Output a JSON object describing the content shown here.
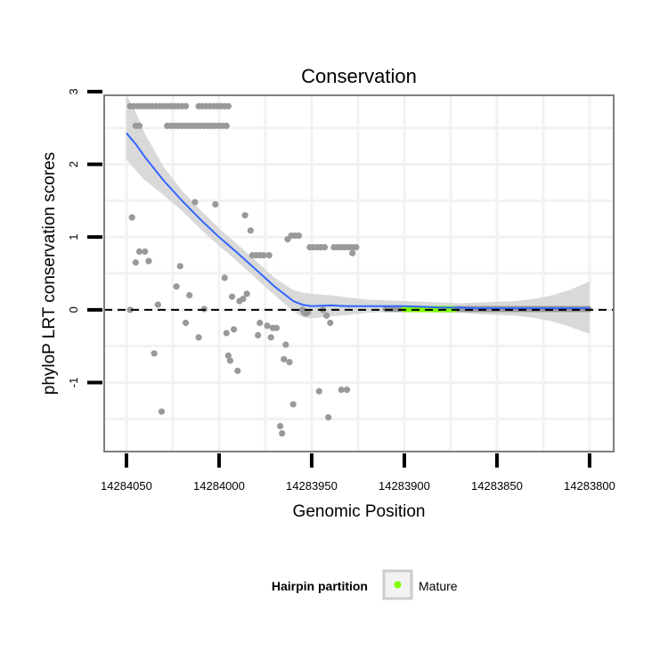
{
  "chart_data": {
    "type": "scatter",
    "title": "Conservation",
    "xlabel": "Genomic Position",
    "ylabel": "phyloP LRT conservation scores",
    "xlim": [
      14284062,
      14283787
    ],
    "x_reversed": true,
    "ylim": [
      -1.95,
      2.95
    ],
    "x_ticks": [
      14284050,
      14284000,
      14283950,
      14283900,
      14283850,
      14283800
    ],
    "x_tick_labels": [
      "14284050",
      "14284000",
      "14283950",
      "14283900",
      "14283850",
      "14283800"
    ],
    "y_ticks": [
      -1,
      0,
      1,
      2,
      3
    ],
    "y_tick_labels": [
      "-1",
      "0",
      "1",
      "2",
      "3"
    ],
    "reference_line": {
      "y": 0,
      "style": "dashed"
    },
    "colors": {
      "points": "#999999",
      "smooth_line": "#3366FF",
      "confidence_band": "#d9d9d9",
      "mature": "#7fff00",
      "panel_border": "#7f7f7f",
      "grid": "#f2f2f2"
    },
    "points": [
      [
        14284048,
        2.8
      ],
      [
        14284046,
        2.8
      ],
      [
        14284044,
        2.8
      ],
      [
        14284042,
        2.8
      ],
      [
        14284040,
        2.8
      ],
      [
        14284038,
        2.8
      ],
      [
        14284036,
        2.8
      ],
      [
        14284034,
        2.8
      ],
      [
        14284032,
        2.8
      ],
      [
        14284030,
        2.8
      ],
      [
        14284028,
        2.8
      ],
      [
        14284026,
        2.8
      ],
      [
        14284024,
        2.8
      ],
      [
        14284022,
        2.8
      ],
      [
        14284020,
        2.8
      ],
      [
        14284018,
        2.8
      ],
      [
        14284011,
        2.8
      ],
      [
        14284009,
        2.8
      ],
      [
        14284007,
        2.8
      ],
      [
        14284005,
        2.8
      ],
      [
        14284003,
        2.8
      ],
      [
        14284001,
        2.8
      ],
      [
        14283999,
        2.8
      ],
      [
        14283997,
        2.8
      ],
      [
        14283995,
        2.8
      ],
      [
        14284045,
        2.53
      ],
      [
        14284043,
        2.53
      ],
      [
        14284028,
        2.53
      ],
      [
        14284026,
        2.53
      ],
      [
        14284024,
        2.53
      ],
      [
        14284022,
        2.53
      ],
      [
        14284020,
        2.53
      ],
      [
        14284018,
        2.53
      ],
      [
        14284016,
        2.53
      ],
      [
        14284014,
        2.53
      ],
      [
        14284012,
        2.53
      ],
      [
        14284010,
        2.53
      ],
      [
        14284008,
        2.53
      ],
      [
        14284006,
        2.53
      ],
      [
        14284004,
        2.53
      ],
      [
        14284002,
        2.53
      ],
      [
        14284000,
        2.53
      ],
      [
        14283998,
        2.53
      ],
      [
        14283996,
        2.53
      ],
      [
        14284047,
        1.27
      ],
      [
        14284045,
        0.65
      ],
      [
        14284043,
        0.8
      ],
      [
        14284040,
        0.8
      ],
      [
        14284038,
        0.67
      ],
      [
        14284048,
        0.0
      ],
      [
        14284035,
        -0.6
      ],
      [
        14284033,
        0.07
      ],
      [
        14284031,
        -1.4
      ],
      [
        14284023,
        0.32
      ],
      [
        14284021,
        0.6
      ],
      [
        14284018,
        -0.18
      ],
      [
        14284016,
        0.2
      ],
      [
        14284013,
        1.48
      ],
      [
        14284011,
        -0.38
      ],
      [
        14284008,
        0.01
      ],
      [
        14284002,
        1.45
      ],
      [
        14283997,
        0.44
      ],
      [
        14283996,
        -0.32
      ],
      [
        14283995,
        -0.63
      ],
      [
        14283994,
        -0.7
      ],
      [
        14283993,
        0.18
      ],
      [
        14283992,
        -0.27
      ],
      [
        14283990,
        -0.84
      ],
      [
        14283989,
        0.12
      ],
      [
        14283987,
        0.15
      ],
      [
        14283986,
        1.3
      ],
      [
        14283985,
        0.22
      ],
      [
        14283983,
        1.09
      ],
      [
        14283982,
        0.75
      ],
      [
        14283980,
        0.75
      ],
      [
        14283978,
        0.75
      ],
      [
        14283979,
        -0.35
      ],
      [
        14283978,
        -0.18
      ],
      [
        14283976,
        0.75
      ],
      [
        14283974,
        -0.22
      ],
      [
        14283973,
        0.75
      ],
      [
        14283972,
        -0.38
      ],
      [
        14283971,
        -0.25
      ],
      [
        14283969,
        -0.25
      ],
      [
        14283967,
        -1.6
      ],
      [
        14283966,
        -1.7
      ],
      [
        14283965,
        -0.68
      ],
      [
        14283964,
        -0.48
      ],
      [
        14283963,
        0.97
      ],
      [
        14283962,
        -0.72
      ],
      [
        14283961,
        1.02
      ],
      [
        14283960,
        -1.3
      ],
      [
        14283959,
        1.02
      ],
      [
        14283957,
        1.02
      ],
      [
        14283955,
        0.0
      ],
      [
        14283954,
        -0.04
      ],
      [
        14283953,
        -0.05
      ],
      [
        14283952,
        -0.03
      ],
      [
        14283951,
        0.86
      ],
      [
        14283949,
        0.86
      ],
      [
        14283947,
        0.86
      ],
      [
        14283945,
        0.86
      ],
      [
        14283943,
        0.86
      ],
      [
        14283946,
        -1.12
      ],
      [
        14283944,
        0.0
      ],
      [
        14283942,
        -0.08
      ],
      [
        14283941,
        -1.48
      ],
      [
        14283940,
        -0.18
      ],
      [
        14283938,
        0.86
      ],
      [
        14283936,
        0.86
      ],
      [
        14283934,
        0.86
      ],
      [
        14283932,
        0.86
      ],
      [
        14283930,
        0.86
      ],
      [
        14283928,
        0.86
      ],
      [
        14283926,
        0.86
      ],
      [
        14283928,
        0.78
      ],
      [
        14283934,
        -1.1
      ],
      [
        14283931,
        -1.1
      ]
    ],
    "mature_range": [
      14283900,
      14283873
    ],
    "smooth_line": [
      [
        14284050,
        2.43
      ],
      [
        14284045,
        2.28
      ],
      [
        14284040,
        2.1
      ],
      [
        14284030,
        1.78
      ],
      [
        14284020,
        1.5
      ],
      [
        14284010,
        1.24
      ],
      [
        14284000,
        1.0
      ],
      [
        14283990,
        0.78
      ],
      [
        14283980,
        0.55
      ],
      [
        14283970,
        0.32
      ],
      [
        14283960,
        0.12
      ],
      [
        14283955,
        0.07
      ],
      [
        14283950,
        0.05
      ],
      [
        14283940,
        0.06
      ],
      [
        14283930,
        0.05
      ],
      [
        14283920,
        0.05
      ],
      [
        14283910,
        0.05
      ],
      [
        14283900,
        0.05
      ],
      [
        14283890,
        0.04
      ],
      [
        14283880,
        0.03
      ],
      [
        14283870,
        0.03
      ],
      [
        14283860,
        0.02
      ],
      [
        14283850,
        0.02
      ],
      [
        14283840,
        0.02
      ],
      [
        14283830,
        0.02
      ],
      [
        14283820,
        0.02
      ],
      [
        14283810,
        0.02
      ],
      [
        14283800,
        0.02
      ]
    ],
    "band_upper": [
      [
        14284050,
        2.95
      ],
      [
        14284045,
        2.72
      ],
      [
        14284040,
        2.42
      ],
      [
        14284030,
        1.97
      ],
      [
        14284020,
        1.64
      ],
      [
        14284010,
        1.37
      ],
      [
        14284000,
        1.12
      ],
      [
        14283990,
        0.9
      ],
      [
        14283980,
        0.67
      ],
      [
        14283970,
        0.44
      ],
      [
        14283960,
        0.27
      ],
      [
        14283955,
        0.24
      ],
      [
        14283950,
        0.22
      ],
      [
        14283940,
        0.2
      ],
      [
        14283930,
        0.17
      ],
      [
        14283920,
        0.14
      ],
      [
        14283910,
        0.13
      ],
      [
        14283900,
        0.12
      ],
      [
        14283890,
        0.11
      ],
      [
        14283880,
        0.1
      ],
      [
        14283870,
        0.09
      ],
      [
        14283860,
        0.1
      ],
      [
        14283850,
        0.11
      ],
      [
        14283840,
        0.12
      ],
      [
        14283830,
        0.15
      ],
      [
        14283820,
        0.2
      ],
      [
        14283810,
        0.28
      ],
      [
        14283800,
        0.39
      ]
    ],
    "band_lower": [
      [
        14284050,
        2.07
      ],
      [
        14284045,
        1.92
      ],
      [
        14284040,
        1.78
      ],
      [
        14284030,
        1.58
      ],
      [
        14284020,
        1.36
      ],
      [
        14284010,
        1.11
      ],
      [
        14284000,
        0.88
      ],
      [
        14283990,
        0.66
      ],
      [
        14283980,
        0.43
      ],
      [
        14283970,
        0.2
      ],
      [
        14283960,
        -0.02
      ],
      [
        14283955,
        -0.1
      ],
      [
        14283950,
        -0.12
      ],
      [
        14283940,
        -0.09
      ],
      [
        14283930,
        -0.07
      ],
      [
        14283920,
        -0.04
      ],
      [
        14283910,
        -0.03
      ],
      [
        14283900,
        -0.02
      ],
      [
        14283890,
        -0.03
      ],
      [
        14283880,
        -0.04
      ],
      [
        14283870,
        -0.04
      ],
      [
        14283860,
        -0.06
      ],
      [
        14283850,
        -0.07
      ],
      [
        14283840,
        -0.08
      ],
      [
        14283830,
        -0.11
      ],
      [
        14283820,
        -0.16
      ],
      [
        14283810,
        -0.24
      ],
      [
        14283800,
        -0.33
      ]
    ]
  },
  "legend": {
    "title": "Hairpin partition",
    "items": [
      {
        "label": "Mature",
        "color": "#7fff00"
      }
    ]
  }
}
